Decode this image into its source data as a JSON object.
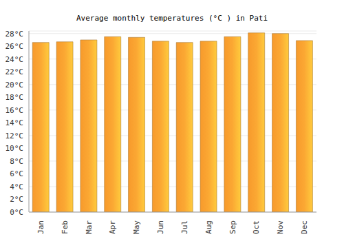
{
  "chart_data": {
    "type": "bar",
    "title": "Average monthly temperatures (°C ) in Pati",
    "categories": [
      "Jan",
      "Feb",
      "Mar",
      "Apr",
      "May",
      "Jun",
      "Jul",
      "Aug",
      "Sep",
      "Oct",
      "Nov",
      "Dec"
    ],
    "values": [
      26.6,
      26.7,
      27.0,
      27.5,
      27.4,
      26.8,
      26.6,
      26.8,
      27.5,
      28.1,
      28.0,
      26.9
    ],
    "color": "#fba833",
    "ylim": [
      0,
      28.4
    ],
    "yticks": [
      {
        "value": 0,
        "label": "0°C"
      },
      {
        "value": 2,
        "label": "2°C"
      },
      {
        "value": 4,
        "label": "4°C"
      },
      {
        "value": 6,
        "label": "6°C"
      },
      {
        "value": 8,
        "label": "8°C"
      },
      {
        "value": 10,
        "label": "10°C"
      },
      {
        "value": 12,
        "label": "12°C"
      },
      {
        "value": 14,
        "label": "14°C"
      },
      {
        "value": 16,
        "label": "16°C"
      },
      {
        "value": 18,
        "label": "18°C"
      },
      {
        "value": 20,
        "label": "20°C"
      },
      {
        "value": 22,
        "label": "22°C"
      },
      {
        "value": 24,
        "label": "24°C"
      },
      {
        "value": 26,
        "label": "26°C"
      },
      {
        "value": 28,
        "label": "28°C"
      }
    ],
    "grid": true
  }
}
